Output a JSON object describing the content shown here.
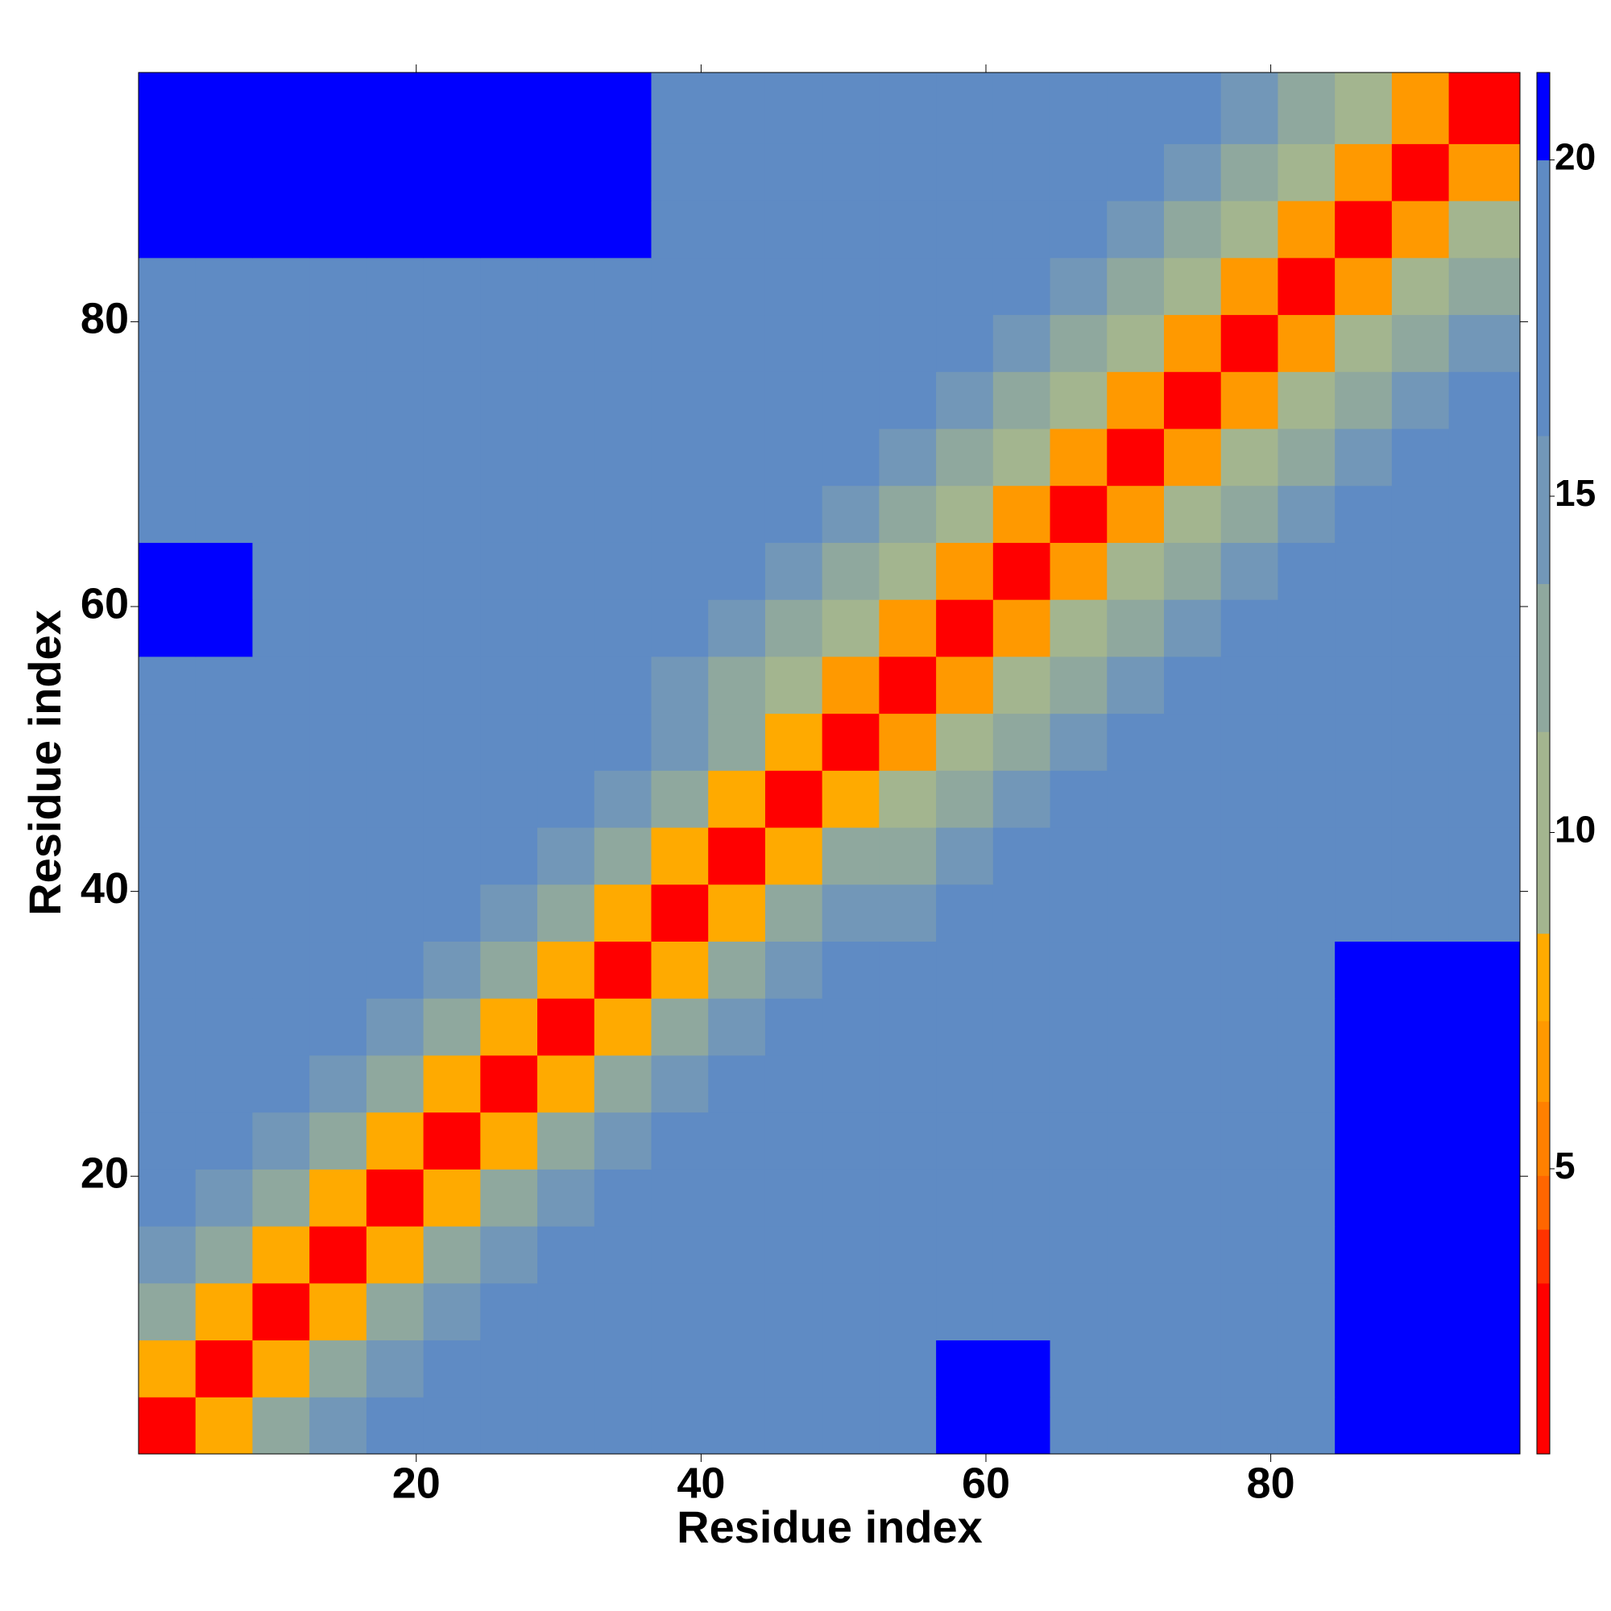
{
  "chart_data": {
    "type": "heatmap",
    "xlabel": "Residue index",
    "ylabel": "Residue index",
    "xbins": [
      0.5,
      4.5,
      8.5,
      12.5,
      16.5,
      20.5,
      24.5,
      28.5,
      32.5,
      36.5,
      40.5,
      44.5,
      48.5,
      52.5,
      56.5,
      60.5,
      64.5,
      68.5,
      72.5,
      76.5,
      80.5,
      84.5,
      88.5,
      92.5,
      97.5
    ],
    "ybins": [
      0.5,
      4.5,
      8.5,
      12.5,
      16.5,
      20.5,
      24.5,
      28.5,
      32.5,
      36.5,
      40.5,
      44.5,
      48.5,
      52.5,
      56.5,
      60.5,
      64.5,
      68.5,
      72.5,
      76.5,
      80.5,
      84.5,
      88.5,
      92.5,
      97.5
    ],
    "xlim": [
      0.5,
      97.5
    ],
    "ylim": [
      0.5,
      97.5
    ],
    "xticks": [
      20,
      40,
      60,
      80
    ],
    "yticks": [
      20,
      40,
      60,
      80
    ],
    "z": [
      [
        3,
        8,
        12,
        15,
        17,
        17,
        17,
        17,
        17,
        17,
        19,
        19,
        19,
        19,
        21,
        21,
        19,
        19,
        19,
        19,
        19,
        21,
        21,
        21
      ],
      [
        8,
        3,
        8,
        12,
        15,
        17,
        17,
        17,
        17,
        17,
        19,
        19,
        19,
        19,
        21,
        21,
        19,
        19,
        19,
        19,
        19,
        21,
        21,
        21
      ],
      [
        12,
        8,
        3,
        8,
        12,
        15,
        17,
        17,
        17,
        17,
        17,
        17,
        17,
        17,
        19,
        18,
        18,
        18,
        18,
        18,
        18,
        21,
        21,
        21
      ],
      [
        15,
        12,
        8,
        3,
        8,
        12,
        15,
        16,
        16,
        16,
        16,
        16,
        16,
        17,
        19,
        18,
        18,
        18,
        18,
        18,
        18,
        21,
        21,
        21
      ],
      [
        17,
        15,
        12,
        8,
        3,
        8,
        12,
        15,
        16,
        16,
        16,
        16,
        16,
        17,
        19,
        18,
        18,
        18,
        18,
        18,
        18,
        21,
        21,
        21
      ],
      [
        17,
        17,
        15,
        12,
        8,
        3,
        8,
        12,
        15,
        16,
        16,
        16,
        16,
        17,
        19,
        18,
        18,
        18,
        18,
        18,
        18,
        21,
        21,
        21
      ],
      [
        17,
        17,
        17,
        15,
        12,
        8,
        3,
        8,
        12,
        15,
        16,
        16,
        16,
        17,
        19,
        18,
        18,
        18,
        18,
        18,
        18,
        21,
        21,
        21
      ],
      [
        17,
        17,
        17,
        16,
        15,
        12,
        8,
        3,
        8,
        12,
        15,
        16,
        16,
        17,
        19,
        18,
        18,
        18,
        18,
        18,
        18,
        21,
        21,
        21
      ],
      [
        17,
        17,
        17,
        16,
        16,
        15,
        12,
        8,
        3,
        8,
        12,
        15,
        16,
        17,
        19,
        18,
        18,
        18,
        18,
        18,
        18,
        21,
        21,
        21
      ],
      [
        17,
        17,
        17,
        16,
        16,
        16,
        15,
        12,
        8,
        3,
        8,
        12,
        15,
        15,
        17,
        18,
        17,
        17,
        17,
        17,
        17,
        20,
        20,
        20
      ],
      [
        19,
        19,
        17,
        16,
        16,
        16,
        16,
        15,
        12,
        8,
        3,
        8,
        12,
        13,
        15,
        17,
        18,
        17,
        17,
        17,
        17,
        20,
        20,
        20
      ],
      [
        19,
        19,
        17,
        16,
        16,
        16,
        16,
        16,
        15,
        12,
        8,
        3,
        8,
        10,
        13,
        15,
        17,
        18,
        17,
        17,
        17,
        20,
        20,
        20
      ],
      [
        19,
        19,
        17,
        16,
        16,
        16,
        16,
        16,
        16,
        15,
        12,
        8,
        3,
        7,
        10,
        13,
        15,
        17,
        18,
        17,
        17,
        20,
        20,
        20
      ],
      [
        19,
        19,
        17,
        17,
        17,
        17,
        17,
        17,
        17,
        15,
        13,
        10,
        7,
        3,
        7,
        10,
        13,
        15,
        17,
        18,
        20,
        20,
        20,
        20
      ],
      [
        21,
        21,
        19,
        19,
        19,
        19,
        19,
        19,
        19,
        17,
        15,
        13,
        10,
        7,
        3,
        7,
        10,
        13,
        15,
        17,
        18,
        20,
        20,
        20
      ],
      [
        21,
        21,
        18,
        18,
        18,
        18,
        18,
        18,
        18,
        18,
        17,
        15,
        13,
        10,
        7,
        3,
        7,
        10,
        13,
        15,
        17,
        18,
        20,
        20
      ],
      [
        19,
        19,
        18,
        18,
        18,
        18,
        18,
        18,
        18,
        17,
        18,
        17,
        15,
        13,
        10,
        7,
        3,
        7,
        10,
        13,
        15,
        17,
        18,
        20
      ],
      [
        19,
        19,
        18,
        18,
        18,
        18,
        18,
        18,
        18,
        17,
        17,
        18,
        17,
        15,
        13,
        10,
        7,
        3,
        7,
        10,
        13,
        15,
        17,
        18
      ],
      [
        19,
        19,
        18,
        18,
        18,
        18,
        18,
        18,
        18,
        17,
        17,
        17,
        18,
        17,
        15,
        13,
        10,
        7,
        3,
        7,
        10,
        13,
        15,
        17
      ],
      [
        19,
        19,
        18,
        18,
        18,
        18,
        18,
        18,
        18,
        17,
        17,
        17,
        17,
        18,
        17,
        15,
        13,
        10,
        7,
        3,
        7,
        10,
        13,
        15
      ],
      [
        19,
        19,
        18,
        18,
        18,
        18,
        18,
        18,
        18,
        17,
        17,
        17,
        17,
        20,
        18,
        17,
        15,
        13,
        10,
        7,
        3,
        7,
        10,
        13
      ],
      [
        21,
        21,
        21,
        21,
        21,
        21,
        21,
        21,
        21,
        20,
        20,
        20,
        20,
        20,
        20,
        18,
        17,
        15,
        13,
        10,
        7,
        3,
        7,
        10
      ],
      [
        21,
        21,
        21,
        21,
        21,
        21,
        21,
        21,
        21,
        20,
        20,
        20,
        20,
        20,
        20,
        20,
        18,
        17,
        15,
        13,
        10,
        7,
        3,
        7
      ],
      [
        21,
        21,
        21,
        21,
        21,
        21,
        21,
        21,
        21,
        20,
        20,
        20,
        20,
        20,
        20,
        20,
        20,
        18,
        17,
        15,
        13,
        10,
        7,
        3
      ]
    ],
    "colorscale": {
      "bounds": [
        0.76,
        3.3,
        4.1,
        4.9,
        6.0,
        7.2,
        8.5,
        11.5,
        13.7,
        15.9,
        20,
        21.3
      ],
      "colors": [
        "#ff0000",
        "#ff3300",
        "#ff6600",
        "#ff8000",
        "#ff9900",
        "#ffaa00",
        "#a3b58f",
        "#8fa89e",
        "#7297b8",
        "#5f8bc4",
        "#0000ff"
      ]
    },
    "clim": [
      0.76,
      21.3
    ],
    "cticks": [
      5,
      10,
      15,
      20
    ]
  }
}
